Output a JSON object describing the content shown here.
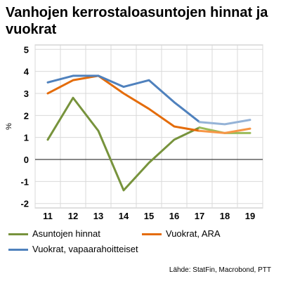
{
  "chart_data": {
    "type": "line",
    "title": "Vanhojen kerrostaloasuntojen hinnat ja vuokrat",
    "ylabel": "%",
    "xlabel": "",
    "categories": [
      "11",
      "12",
      "13",
      "14",
      "15",
      "16",
      "17",
      "18",
      "19"
    ],
    "ylim": [
      -2.2,
      5.2
    ],
    "yticks": [
      "5",
      "4",
      "3",
      "2",
      "1",
      "0",
      "-1",
      "-2"
    ],
    "ytick_values": [
      5,
      4,
      3,
      2,
      1,
      0,
      -1,
      -2
    ],
    "grid": true,
    "legend_position": "bottom",
    "series": [
      {
        "name": "Asuntojen hinnat",
        "color": "#77933c",
        "values": [
          0.9,
          2.8,
          1.3,
          -1.4,
          -0.15,
          0.9,
          1.45,
          1.2,
          1.2
        ],
        "light_color": "#9bbb59",
        "light_from_index": 6
      },
      {
        "name": "Vuokrat, ARA",
        "color": "#e46c0a",
        "values": [
          3.0,
          3.6,
          3.8,
          3.0,
          2.3,
          1.5,
          1.3,
          1.2,
          1.4
        ],
        "light_color": "#f79646",
        "light_from_index": 6
      },
      {
        "name": "Vuokrat, vapaarahoitteiset",
        "color": "#4f81bd",
        "values": [
          3.5,
          3.8,
          3.8,
          3.3,
          3.6,
          2.6,
          1.7,
          1.6,
          1.8
        ],
        "light_color": "#95b3d7",
        "light_from_index": 6
      }
    ]
  },
  "source": "Lähde: StatFin, Macrobond, PTT"
}
